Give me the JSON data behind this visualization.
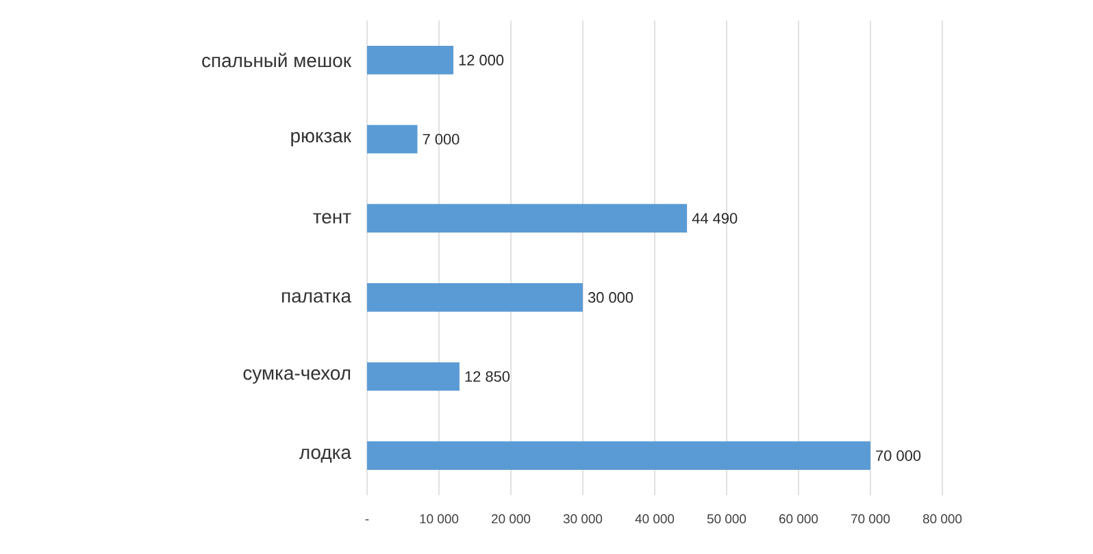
{
  "chart_data": {
    "type": "bar",
    "orientation": "horizontal",
    "categories": [
      "спальный мешок",
      "рюкзак",
      "тент",
      "палатка",
      "сумка-чехол",
      "лодка"
    ],
    "values": [
      12000,
      7000,
      44490,
      30000,
      12850,
      70000
    ],
    "value_labels": [
      "12 000",
      "7 000",
      "44 490",
      "30 000",
      "12 850",
      "70 000"
    ],
    "color": "#5b9bd5",
    "xlim": [
      0,
      80000
    ],
    "xticks": [
      {
        "value": 0,
        "label": "-"
      },
      {
        "value": 10000,
        "label": "10 000"
      },
      {
        "value": 20000,
        "label": "20 000"
      },
      {
        "value": 30000,
        "label": "30 000"
      },
      {
        "value": 40000,
        "label": "40 000"
      },
      {
        "value": 50000,
        "label": "50 000"
      },
      {
        "value": 60000,
        "label": "60 000"
      },
      {
        "value": 70000,
        "label": "70 000"
      },
      {
        "value": 80000,
        "label": "80 000"
      }
    ],
    "grid": "x"
  }
}
